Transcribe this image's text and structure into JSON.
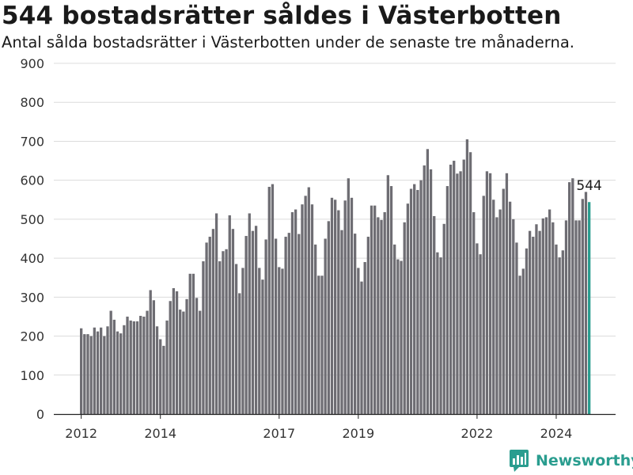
{
  "title": "544 bostadsrätter såldes i Västerbotten",
  "subtitle": "Antal sålda bostadsrätter i Västerbotten under de senaste tre månaderna.",
  "brand": {
    "name": "Newsworthy",
    "icon": "newsworthy-logo-icon",
    "color": "#2a9d8f"
  },
  "chart_data": {
    "type": "bar",
    "title": "544 bostadsrätter såldes i Västerbotten",
    "ylim": [
      0,
      900
    ],
    "y_ticks": [
      0,
      100,
      200,
      300,
      400,
      500,
      600,
      700,
      800,
      900
    ],
    "x_tick_labels": [
      "2012",
      "2014",
      "2017",
      "2019",
      "2022",
      "2024"
    ],
    "grid": true,
    "bar_color": "#6e6d73",
    "highlight_color": "#2a9d8f",
    "annotation": {
      "text": "544",
      "target": "last"
    },
    "start_month": "2012-01",
    "values": [
      220,
      205,
      205,
      200,
      222,
      212,
      222,
      200,
      225,
      265,
      242,
      212,
      207,
      228,
      250,
      240,
      238,
      238,
      252,
      250,
      265,
      318,
      292,
      225,
      192,
      175,
      240,
      290,
      323,
      315,
      268,
      263,
      295,
      360,
      360,
      298,
      265,
      392,
      440,
      455,
      475,
      515,
      392,
      418,
      423,
      510,
      475,
      385,
      310,
      375,
      457,
      515,
      470,
      483,
      375,
      345,
      448,
      583,
      590,
      450,
      377,
      373,
      455,
      465,
      518,
      525,
      462,
      538,
      560,
      582,
      538,
      435,
      355,
      355,
      450,
      495,
      555,
      550,
      523,
      472,
      548,
      605,
      555,
      463,
      375,
      340,
      390,
      455,
      535,
      535,
      505,
      498,
      518,
      613,
      585,
      435,
      397,
      393,
      492,
      540,
      578,
      590,
      575,
      600,
      638,
      680,
      628,
      508,
      415,
      402,
      488,
      585,
      640,
      650,
      617,
      623,
      653,
      705,
      672,
      518,
      438,
      410,
      560,
      623,
      618,
      550,
      505,
      525,
      578,
      618,
      545,
      500,
      440,
      355,
      373,
      425,
      470,
      455,
      487,
      470,
      502,
      505,
      525,
      492,
      435,
      402,
      420,
      497,
      595,
      605,
      497,
      497,
      552,
      570,
      544
    ]
  }
}
